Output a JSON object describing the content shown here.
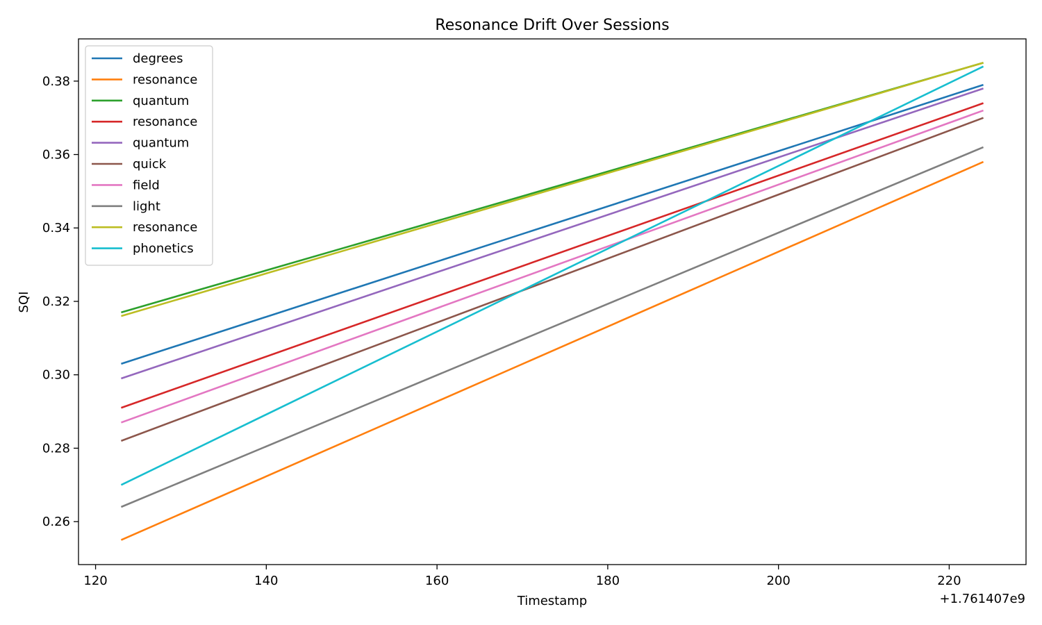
{
  "chart_data": {
    "type": "line",
    "title": "Resonance Drift Over Sessions",
    "xlabel": "Timestamp",
    "ylabel": "SQI",
    "x_offset_label": "+1.761407e9",
    "xlim": [
      118,
      229
    ],
    "ylim": [
      0.2483,
      0.3915
    ],
    "xticks": [
      120,
      140,
      160,
      180,
      200,
      220
    ],
    "xtick_labels": [
      "120",
      "140",
      "160",
      "180",
      "200",
      "220"
    ],
    "yticks": [
      0.26,
      0.28,
      0.3,
      0.32,
      0.34,
      0.36,
      0.38
    ],
    "ytick_labels": [
      "0.26",
      "0.28",
      "0.30",
      "0.32",
      "0.34",
      "0.36",
      "0.38"
    ],
    "grid": false,
    "legend_position": "upper-left",
    "x": [
      123,
      224
    ],
    "series": [
      {
        "name": "degrees",
        "color": "#1f77b4",
        "values": [
          0.303,
          0.379
        ]
      },
      {
        "name": "resonance",
        "color": "#ff7f0e",
        "values": [
          0.255,
          0.358
        ]
      },
      {
        "name": "quantum",
        "color": "#2ca02c",
        "values": [
          0.317,
          0.385
        ]
      },
      {
        "name": "resonance",
        "color": "#d62728",
        "values": [
          0.291,
          0.374
        ]
      },
      {
        "name": "quantum",
        "color": "#9467bd",
        "values": [
          0.299,
          0.378
        ]
      },
      {
        "name": "quick",
        "color": "#8c564b",
        "values": [
          0.282,
          0.37
        ]
      },
      {
        "name": "field",
        "color": "#e377c2",
        "values": [
          0.287,
          0.372
        ]
      },
      {
        "name": "light",
        "color": "#7f7f7f",
        "values": [
          0.264,
          0.362
        ]
      },
      {
        "name": "resonance",
        "color": "#bcbd22",
        "values": [
          0.316,
          0.385
        ]
      },
      {
        "name": "phonetics",
        "color": "#17becf",
        "values": [
          0.27,
          0.384
        ]
      }
    ]
  }
}
